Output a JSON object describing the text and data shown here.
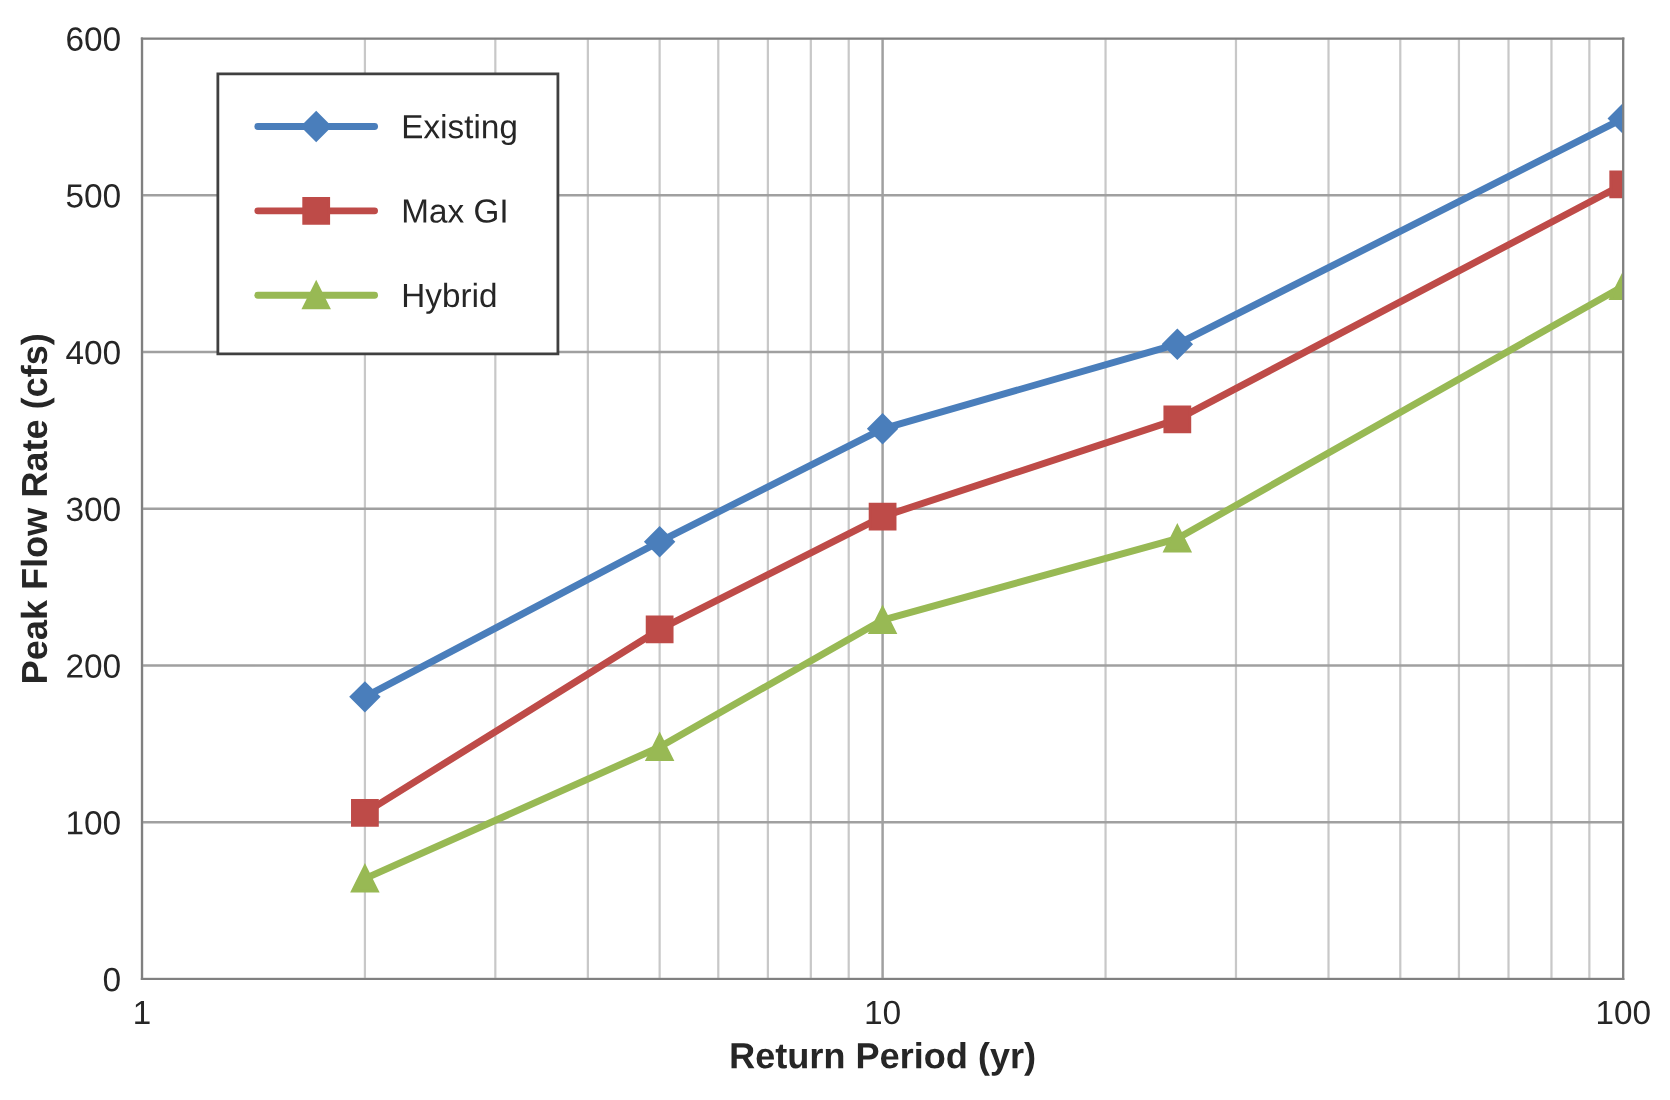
{
  "chart_data": {
    "type": "line",
    "xlabel": "Return Period (yr)",
    "ylabel": "Peak Flow Rate (cfs)",
    "log": "x",
    "xlim": [
      1,
      100
    ],
    "xticks": [
      1,
      10,
      100
    ],
    "ylim": [
      0,
      600
    ],
    "yticks": [
      0,
      100,
      200,
      300,
      400,
      500,
      600
    ],
    "grid": true,
    "legend": "top left",
    "line_style": "solid",
    "series": [
      {
        "name": "Existing",
        "color": "#4a7ebb",
        "marker": "diamond",
        "x": [
          2,
          5,
          10,
          25,
          100
        ],
        "values": [
          180,
          279,
          351,
          405,
          549
        ]
      },
      {
        "name": "Max GI",
        "color": "#be4b48",
        "marker": "square",
        "x": [
          2,
          5,
          10,
          25,
          100
        ],
        "values": [
          106,
          223,
          295,
          357,
          507
        ]
      },
      {
        "name": "Hybrid",
        "color": "#98b954",
        "marker": "triangle",
        "x": [
          2,
          5,
          10,
          25,
          100
        ],
        "values": [
          64,
          148,
          229,
          281,
          442
        ]
      }
    ]
  }
}
